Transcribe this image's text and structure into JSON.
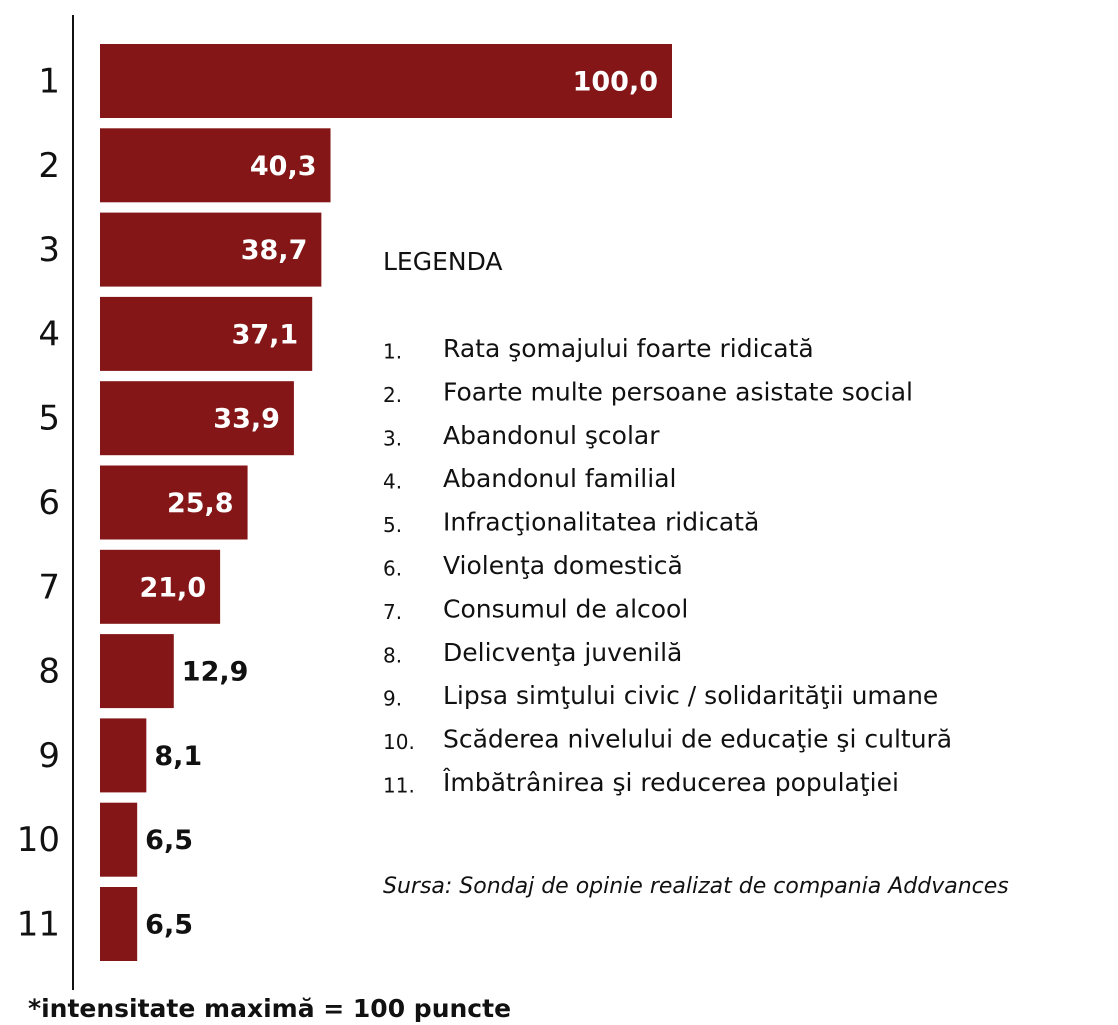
{
  "chart_data": {
    "type": "bar",
    "orientation": "horizontal",
    "categories": [
      "1",
      "2",
      "3",
      "4",
      "5",
      "6",
      "7",
      "8",
      "9",
      "10",
      "11"
    ],
    "values": [
      100.0,
      40.3,
      38.7,
      37.1,
      33.9,
      25.8,
      21.0,
      12.9,
      8.1,
      6.5,
      6.5
    ],
    "value_labels": [
      "100,0",
      "40,3",
      "38,7",
      "37,1",
      "33,9",
      "25,8",
      "21,0",
      "12,9",
      "8,1",
      "6,5",
      "6,5"
    ],
    "color": "#841617",
    "xlim": [
      0,
      100
    ],
    "legend_title": "LEGENDA",
    "legend_items": [
      {
        "number": "1.",
        "text": "Rata şomajului foarte ridicată"
      },
      {
        "number": "2.",
        "text": "Foarte multe persoane asistate social"
      },
      {
        "number": "3.",
        "text": "Abandonul şcolar"
      },
      {
        "number": "4.",
        "text": "Abandonul familial"
      },
      {
        "number": "5.",
        "text": "Infracţionalitatea ridicată"
      },
      {
        "number": "6.",
        "text": "Violenţa domestică"
      },
      {
        "number": "7.",
        "text": "Consumul de alcool"
      },
      {
        "number": "8.",
        "text": "Delicvenţa juvenilă"
      },
      {
        "number": "9.",
        "text": "Lipsa simţului civic / solidarităţii umane"
      },
      {
        "number": "10.",
        "text": "Scăderea nivelului de educaţie şi cultură"
      },
      {
        "number": "11.",
        "text": "Îmbătrânirea şi reducerea populaţiei"
      }
    ],
    "source": "Sursa: Sondaj de opinie realizat de compania Addvances",
    "footnote": "*intensitate maximă = 100 puncte"
  }
}
